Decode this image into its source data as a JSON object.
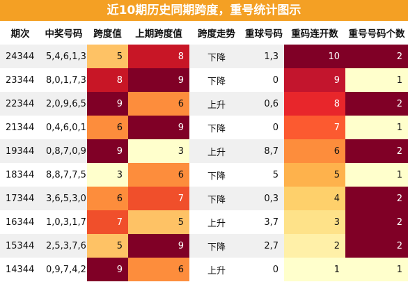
{
  "title": "近10期历史同期跨度，重号统计图示",
  "headers": [
    "期次",
    "中奖号码",
    "跨度值",
    "上期跨度值",
    "跨度走势",
    "重球号码",
    "重码连开数",
    "重号号码个数"
  ],
  "rows": [
    {
      "issue": "24344",
      "numbers": "5,4,6,1,3",
      "span": "5",
      "prev_span": "8",
      "trend": "下降",
      "repeat_balls": "1,3",
      "repeat_streak": "10",
      "repeat_count": "2"
    },
    {
      "issue": "23344",
      "numbers": "8,0,1,7,3",
      "span": "8",
      "prev_span": "9",
      "trend": "下降",
      "repeat_balls": "0",
      "repeat_streak": "9",
      "repeat_count": "1"
    },
    {
      "issue": "22344",
      "numbers": "2,0,9,6,5",
      "span": "9",
      "prev_span": "6",
      "trend": "上升",
      "repeat_balls": "0,6",
      "repeat_streak": "8",
      "repeat_count": "2"
    },
    {
      "issue": "21344",
      "numbers": "0,4,6,0,1",
      "span": "6",
      "prev_span": "9",
      "trend": "下降",
      "repeat_balls": "0",
      "repeat_streak": "7",
      "repeat_count": "1"
    },
    {
      "issue": "19344",
      "numbers": "0,8,7,0,9",
      "span": "9",
      "prev_span": "3",
      "trend": "上升",
      "repeat_balls": "8,7",
      "repeat_streak": "6",
      "repeat_count": "2"
    },
    {
      "issue": "18344",
      "numbers": "8,8,7,7,5",
      "span": "3",
      "prev_span": "6",
      "trend": "下降",
      "repeat_balls": "5",
      "repeat_streak": "5",
      "repeat_count": "1"
    },
    {
      "issue": "17344",
      "numbers": "3,6,5,3,0",
      "span": "6",
      "prev_span": "7",
      "trend": "下降",
      "repeat_balls": "0,3",
      "repeat_streak": "4",
      "repeat_count": "2"
    },
    {
      "issue": "16344",
      "numbers": "1,0,3,1,7",
      "span": "7",
      "prev_span": "5",
      "trend": "上升",
      "repeat_balls": "3,7",
      "repeat_streak": "3",
      "repeat_count": "2"
    },
    {
      "issue": "15344",
      "numbers": "2,5,3,7,6",
      "span": "5",
      "prev_span": "9",
      "trend": "下降",
      "repeat_balls": "2,7",
      "repeat_streak": "2",
      "repeat_count": "2"
    },
    {
      "issue": "14344",
      "numbers": "0,9,7,4,2",
      "span": "9",
      "prev_span": "6",
      "trend": "上升",
      "repeat_balls": "0",
      "repeat_streak": "1",
      "repeat_count": "1"
    }
  ],
  "colors": {
    "title_bg": "#f4a024",
    "span_scale": {
      "3": "#ffffcc",
      "5": "#fec265",
      "6": "#fd8d3c",
      "7": "#f04f2b",
      "8": "#c81626",
      "9": "#800026"
    },
    "streak_scale": {
      "1": "#ffffcc",
      "2": "#fff0a8",
      "3": "#fee289",
      "4": "#fed06b",
      "5": "#feb24c",
      "6": "#fd8d3c",
      "7": "#fc5a30",
      "8": "#e8262b",
      "9": "#c3152d",
      "10": "#800026"
    },
    "count_scale": {
      "1": "#ffffcc",
      "2": "#800026"
    }
  }
}
